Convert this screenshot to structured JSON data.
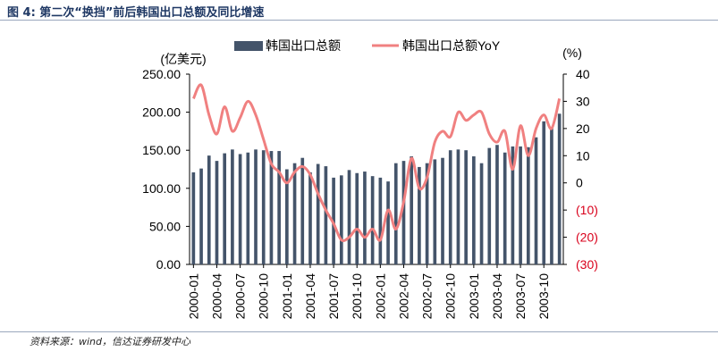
{
  "header": {
    "title": "图 4: 第二次“换挡”前后韩国出口总额及同比增速"
  },
  "footer": {
    "source": "资料来源：wind，信达证券研发中心"
  },
  "colors": {
    "bar": "#44546a",
    "line": "#f08080",
    "negative_tick": "#d9001b",
    "axis": "#000000",
    "title": "#1f3864"
  },
  "chart_data": {
    "type": "bar+line",
    "left_axis_unit": "(亿美元)",
    "right_axis_unit": "(%)",
    "ylim_left": [
      0,
      250
    ],
    "ylim_right": [
      -30,
      40
    ],
    "left_ticks": [
      "0.00",
      "50.00",
      "100.00",
      "150.00",
      "200.00",
      "250.00"
    ],
    "right_ticks": [
      "(30)",
      "(20)",
      "(10)",
      "0",
      "10",
      "20",
      "30",
      "40"
    ],
    "x_tick_labels": [
      "2000-01",
      "2000-04",
      "2000-07",
      "2000-10",
      "2001-01",
      "2001-04",
      "2001-07",
      "2001-10",
      "2002-01",
      "2002-04",
      "2002-07",
      "2002-10",
      "2003-01",
      "2003-04",
      "2003-07",
      "2003-10"
    ],
    "legend_position": "top-center",
    "categories": [
      "2000-01",
      "2000-02",
      "2000-03",
      "2000-04",
      "2000-05",
      "2000-06",
      "2000-07",
      "2000-08",
      "2000-09",
      "2000-10",
      "2000-11",
      "2000-12",
      "2001-01",
      "2001-02",
      "2001-03",
      "2001-04",
      "2001-05",
      "2001-06",
      "2001-07",
      "2001-08",
      "2001-09",
      "2001-10",
      "2001-11",
      "2001-12",
      "2002-01",
      "2002-02",
      "2002-03",
      "2002-04",
      "2002-05",
      "2002-06",
      "2002-07",
      "2002-08",
      "2002-09",
      "2002-10",
      "2002-11",
      "2002-12",
      "2003-01",
      "2003-02",
      "2003-03",
      "2003-04",
      "2003-05",
      "2003-06",
      "2003-07",
      "2003-08",
      "2003-09",
      "2003-10",
      "2003-11",
      "2003-12"
    ],
    "series": [
      {
        "name": "韩国出口总额",
        "kind": "bar",
        "axis": "left",
        "values": [
          121,
          126,
          143,
          136,
          146,
          151,
          145,
          147,
          151,
          150,
          149,
          149,
          125,
          133,
          140,
          121,
          132,
          129,
          114,
          117,
          124,
          120,
          122,
          116,
          114,
          109,
          133,
          136,
          142,
          128,
          133,
          138,
          140,
          150,
          151,
          150,
          142,
          133,
          153,
          157,
          147,
          155,
          155,
          154,
          167,
          188,
          180,
          198
        ]
      },
      {
        "name": "韩国出口总额YoY",
        "kind": "line",
        "axis": "right",
        "values": [
          31,
          36,
          25,
          18,
          28,
          19,
          24,
          30,
          25,
          16,
          7,
          4,
          0,
          4,
          6,
          3,
          -4,
          -10,
          -15,
          -21,
          -20,
          -17,
          -20,
          -17,
          -21,
          -10,
          -17,
          -7,
          9,
          -2,
          2,
          15,
          19,
          17,
          26,
          23,
          25,
          26,
          18,
          15,
          19,
          5,
          21,
          10,
          20,
          25,
          20,
          31
        ]
      }
    ]
  }
}
